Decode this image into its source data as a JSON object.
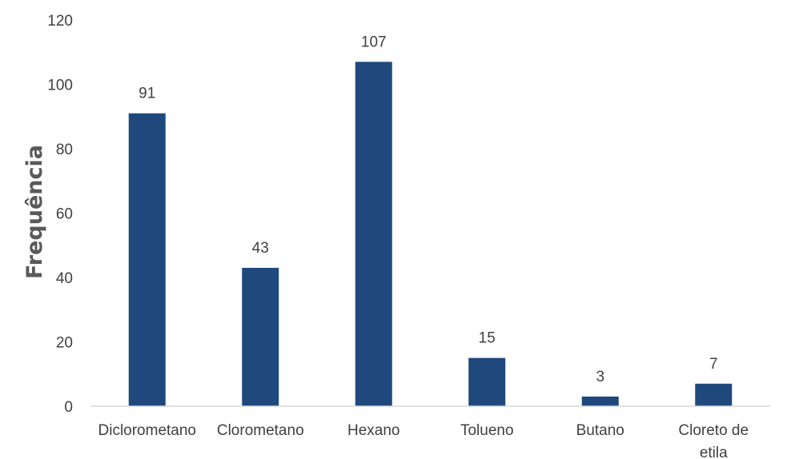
{
  "chart_data": {
    "type": "bar",
    "title": "",
    "xlabel": "",
    "ylabel": "Frequência",
    "categories": [
      [
        "Diclorometano"
      ],
      [
        "Clorometano"
      ],
      [
        "Hexano"
      ],
      [
        "Tolueno"
      ],
      [
        "Butano"
      ],
      [
        "Cloreto de",
        "etila"
      ]
    ],
    "values": [
      91,
      43,
      107,
      15,
      3,
      7
    ],
    "ylim": [
      0,
      120
    ],
    "yticks": [
      0,
      20,
      40,
      60,
      80,
      100,
      120
    ],
    "grid": false,
    "legend": "none",
    "bar_color": "#1f497d",
    "text_color": "#404040",
    "axis_color": "#d9d9d9"
  }
}
